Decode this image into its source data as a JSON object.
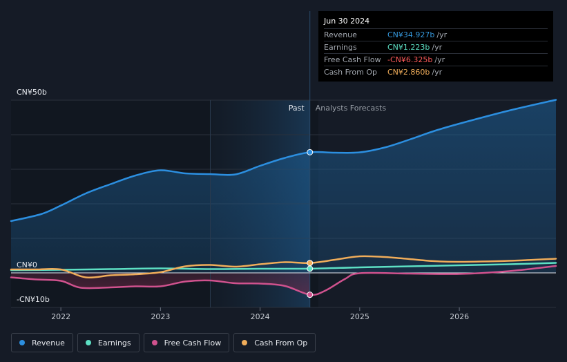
{
  "tooltip": {
    "date": "Jun 30 2024",
    "rows": [
      {
        "name": "Revenue",
        "value": "CN¥34.927b",
        "unit": "/yr",
        "color": "#3598dc"
      },
      {
        "name": "Earnings",
        "value": "CN¥1.223b",
        "unit": "/yr",
        "color": "#5de0c4"
      },
      {
        "name": "Free Cash Flow",
        "value": "-CN¥6.325b",
        "unit": "/yr",
        "color": "#ff5b5b"
      },
      {
        "name": "Cash From Op",
        "value": "CN¥2.860b",
        "unit": "/yr",
        "color": "#f0ad5a"
      }
    ]
  },
  "legend": [
    {
      "label": "Revenue",
      "color": "#2c8fe0"
    },
    {
      "label": "Earnings",
      "color": "#5de0c4"
    },
    {
      "label": "Free Cash Flow",
      "color": "#d0528e"
    },
    {
      "label": "Cash From Op",
      "color": "#f0ad5a"
    }
  ],
  "chart_data": {
    "type": "line",
    "title": "",
    "xlabel": "",
    "ylabel": "",
    "unit": "CN¥ billion",
    "xlim": [
      2021.5,
      2026.97
    ],
    "ylim": [
      -10,
      50
    ],
    "y_tick_labels": [
      {
        "value": 50,
        "label": "CN¥50b"
      },
      {
        "value": 0,
        "label": "CN¥0"
      },
      {
        "value": -10,
        "label": "-CN¥10b"
      }
    ],
    "x_ticks": [
      {
        "value": 2022,
        "label": "2022"
      },
      {
        "value": 2023,
        "label": "2023"
      },
      {
        "value": 2024,
        "label": "2024"
      },
      {
        "value": 2025,
        "label": "2025"
      },
      {
        "value": 2026,
        "label": "2026"
      }
    ],
    "past_label": "Past",
    "forecast_label": "Analysts Forecasts",
    "past_region_start": 2023.5,
    "divider_x": 2024.5,
    "series": [
      {
        "name": "Revenue",
        "color": "#2c8fe0",
        "points": [
          [
            2021.5,
            15.0
          ],
          [
            2021.8,
            17.0
          ],
          [
            2022.0,
            19.5
          ],
          [
            2022.25,
            23.0
          ],
          [
            2022.5,
            25.7
          ],
          [
            2022.75,
            28.2
          ],
          [
            2023.0,
            29.7
          ],
          [
            2023.25,
            28.8
          ],
          [
            2023.5,
            28.6
          ],
          [
            2023.75,
            28.5
          ],
          [
            2024.0,
            31.0
          ],
          [
            2024.25,
            33.3
          ],
          [
            2024.5,
            34.93
          ],
          [
            2024.75,
            34.8
          ],
          [
            2025.0,
            34.9
          ],
          [
            2025.25,
            36.3
          ],
          [
            2025.5,
            38.6
          ],
          [
            2025.75,
            41.1
          ],
          [
            2026.0,
            43.2
          ],
          [
            2026.5,
            47.0
          ],
          [
            2026.97,
            50.1
          ]
        ]
      },
      {
        "name": "Earnings",
        "color": "#5de0c4",
        "points": [
          [
            2021.5,
            0.8
          ],
          [
            2022.0,
            0.9
          ],
          [
            2022.5,
            1.1
          ],
          [
            2023.0,
            1.3
          ],
          [
            2023.5,
            1.1
          ],
          [
            2024.0,
            1.2
          ],
          [
            2024.5,
            1.22
          ],
          [
            2025.0,
            1.6
          ],
          [
            2025.5,
            1.9
          ],
          [
            2026.0,
            2.2
          ],
          [
            2026.5,
            2.5
          ],
          [
            2026.97,
            2.9
          ]
        ]
      },
      {
        "name": "Free Cash Flow",
        "color": "#d0528e",
        "points": [
          [
            2021.5,
            -1.3
          ],
          [
            2021.75,
            -1.9
          ],
          [
            2022.0,
            -2.3
          ],
          [
            2022.2,
            -4.3
          ],
          [
            2022.5,
            -4.2
          ],
          [
            2022.75,
            -3.9
          ],
          [
            2023.0,
            -3.9
          ],
          [
            2023.25,
            -2.5
          ],
          [
            2023.5,
            -2.2
          ],
          [
            2023.75,
            -3.0
          ],
          [
            2024.0,
            -3.1
          ],
          [
            2024.25,
            -3.8
          ],
          [
            2024.5,
            -6.33
          ],
          [
            2024.65,
            -5.2
          ],
          [
            2024.85,
            -1.8
          ],
          [
            2025.0,
            -0.1
          ],
          [
            2025.5,
            -0.2
          ],
          [
            2026.0,
            -0.3
          ],
          [
            2026.5,
            0.5
          ],
          [
            2026.97,
            2.0
          ]
        ]
      },
      {
        "name": "Cash From Op",
        "color": "#f0ad5a",
        "points": [
          [
            2021.5,
            1.0
          ],
          [
            2021.75,
            1.0
          ],
          [
            2022.0,
            1.0
          ],
          [
            2022.25,
            -1.3
          ],
          [
            2022.5,
            -0.7
          ],
          [
            2022.75,
            -0.4
          ],
          [
            2023.0,
            0.2
          ],
          [
            2023.25,
            1.9
          ],
          [
            2023.5,
            2.3
          ],
          [
            2023.75,
            1.8
          ],
          [
            2024.0,
            2.5
          ],
          [
            2024.25,
            3.1
          ],
          [
            2024.5,
            2.86
          ],
          [
            2024.75,
            3.8
          ],
          [
            2025.0,
            4.8
          ],
          [
            2025.25,
            4.6
          ],
          [
            2025.5,
            4.0
          ],
          [
            2025.75,
            3.4
          ],
          [
            2026.0,
            3.2
          ],
          [
            2026.5,
            3.5
          ],
          [
            2026.97,
            4.1
          ]
        ]
      }
    ],
    "highlight_x": 2024.5
  }
}
